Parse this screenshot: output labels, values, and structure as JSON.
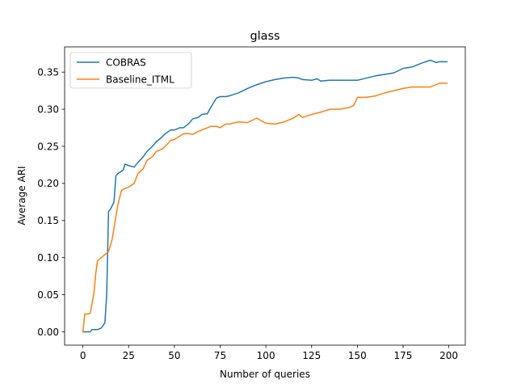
{
  "chart_data": {
    "type": "line",
    "title": "glass",
    "xlabel": "Number of queries",
    "ylabel": "Average ARI",
    "xlim": [
      -10,
      209
    ],
    "ylim": [
      -0.018,
      0.384
    ],
    "xticks": [
      0,
      25,
      50,
      75,
      100,
      125,
      150,
      175,
      200
    ],
    "yticks": [
      0.0,
      0.05,
      0.1,
      0.15,
      0.2,
      0.25,
      0.3,
      0.35
    ],
    "grid": false,
    "legend_position": "top-left",
    "series": [
      {
        "name": "COBRAS",
        "color": "#1f77b4",
        "x": [
          0,
          4,
          5,
          8,
          10,
          12,
          13,
          14,
          15,
          17,
          18,
          19,
          22,
          23,
          25,
          28,
          30,
          33,
          35,
          38,
          40,
          43,
          45,
          48,
          50,
          53,
          55,
          58,
          60,
          63,
          65,
          68,
          70,
          73,
          75,
          78,
          80,
          85,
          90,
          95,
          100,
          105,
          110,
          115,
          118,
          120,
          125,
          128,
          130,
          135,
          140,
          145,
          150,
          155,
          160,
          165,
          170,
          175,
          180,
          185,
          190,
          193,
          195,
          199
        ],
        "y": [
          0.0,
          0.0,
          0.003,
          0.003,
          0.005,
          0.012,
          0.05,
          0.162,
          0.165,
          0.175,
          0.21,
          0.213,
          0.218,
          0.226,
          0.224,
          0.222,
          0.228,
          0.236,
          0.243,
          0.25,
          0.256,
          0.262,
          0.267,
          0.272,
          0.272,
          0.275,
          0.275,
          0.281,
          0.287,
          0.289,
          0.293,
          0.294,
          0.303,
          0.315,
          0.317,
          0.317,
          0.318,
          0.322,
          0.328,
          0.333,
          0.337,
          0.34,
          0.342,
          0.343,
          0.342,
          0.34,
          0.339,
          0.341,
          0.338,
          0.339,
          0.339,
          0.339,
          0.339,
          0.342,
          0.345,
          0.347,
          0.349,
          0.355,
          0.357,
          0.362,
          0.366,
          0.363,
          0.364,
          0.364
        ]
      },
      {
        "name": "Baseline_ITML",
        "color": "#ff7f0e",
        "x": [
          0,
          1,
          3,
          4,
          6,
          7,
          8,
          9,
          10,
          12,
          14,
          16,
          18,
          19,
          20,
          21,
          22,
          25,
          28,
          30,
          33,
          35,
          38,
          40,
          43,
          45,
          48,
          50,
          55,
          58,
          60,
          63,
          65,
          70,
          73,
          75,
          78,
          80,
          85,
          90,
          95,
          100,
          105,
          110,
          115,
          118,
          120,
          125,
          130,
          135,
          140,
          145,
          148,
          150,
          155,
          160,
          165,
          170,
          175,
          180,
          185,
          190,
          195,
          199
        ],
        "y": [
          0.0,
          0.024,
          0.024,
          0.025,
          0.052,
          0.078,
          0.096,
          0.098,
          0.1,
          0.104,
          0.108,
          0.125,
          0.155,
          0.17,
          0.18,
          0.19,
          0.192,
          0.195,
          0.2,
          0.213,
          0.22,
          0.231,
          0.236,
          0.243,
          0.246,
          0.25,
          0.258,
          0.259,
          0.267,
          0.267,
          0.266,
          0.27,
          0.272,
          0.277,
          0.277,
          0.275,
          0.28,
          0.28,
          0.283,
          0.282,
          0.288,
          0.281,
          0.28,
          0.283,
          0.288,
          0.293,
          0.289,
          0.293,
          0.296,
          0.3,
          0.3,
          0.302,
          0.305,
          0.316,
          0.316,
          0.318,
          0.322,
          0.325,
          0.328,
          0.33,
          0.33,
          0.33,
          0.335,
          0.335
        ]
      }
    ]
  }
}
